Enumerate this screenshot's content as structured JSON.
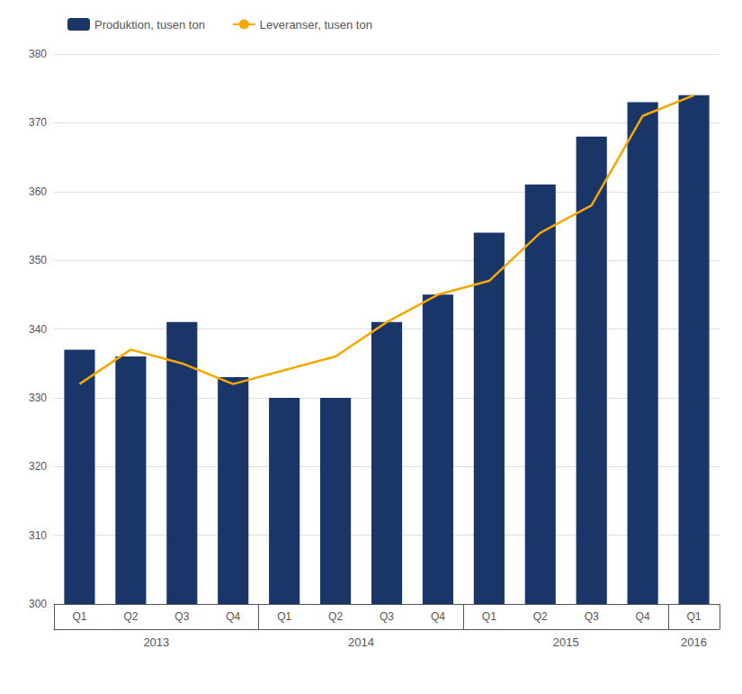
{
  "chart_data": {
    "type": "bar",
    "categories": [
      "Q1",
      "Q2",
      "Q3",
      "Q4",
      "Q1",
      "Q2",
      "Q3",
      "Q4",
      "Q1",
      "Q2",
      "Q3",
      "Q4",
      "Q1"
    ],
    "series": [
      {
        "name": "Produktion, tusen ton",
        "type": "bar",
        "color": "#1a3668",
        "values": [
          337,
          336,
          341,
          333,
          330,
          330,
          341,
          345,
          354,
          361,
          368,
          373,
          374
        ]
      },
      {
        "name": "Leveranser, tusen ton",
        "type": "line",
        "color": "#f5a800",
        "values": [
          332,
          337,
          335,
          332,
          334,
          336,
          341,
          345,
          347,
          354,
          358,
          371,
          374
        ]
      }
    ],
    "year_groups": [
      {
        "label": "2013",
        "positions": [
          0,
          1,
          2,
          3
        ]
      },
      {
        "label": "2014",
        "positions": [
          4,
          5,
          6,
          7
        ]
      },
      {
        "label": "2015",
        "positions": [
          8,
          9,
          10,
          11
        ]
      },
      {
        "label": "2016",
        "positions": [
          12
        ]
      }
    ],
    "ylim": [
      300,
      380
    ],
    "yticks": [
      300,
      310,
      320,
      330,
      340,
      350,
      360,
      370,
      380
    ],
    "grid": true,
    "legend": "upper left"
  }
}
